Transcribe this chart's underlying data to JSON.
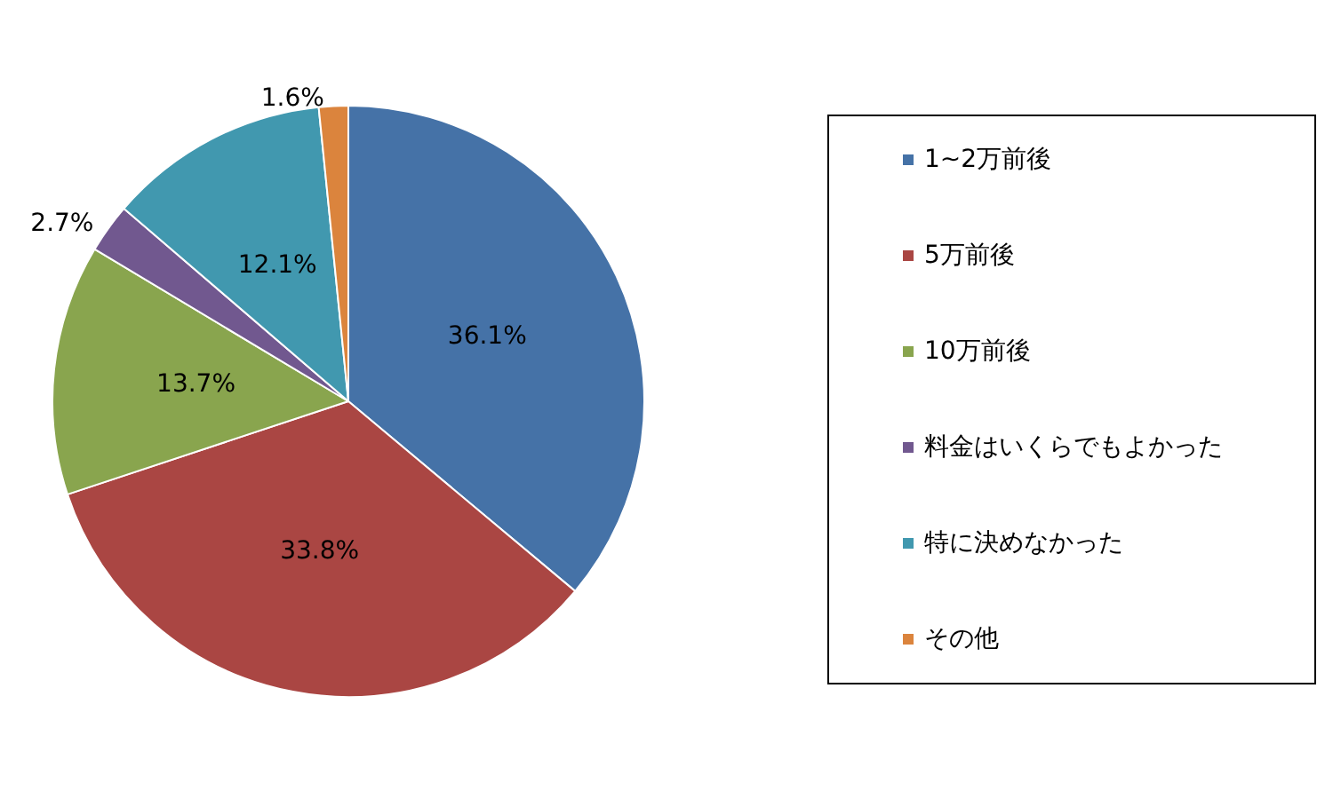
{
  "chart_data": {
    "type": "pie",
    "categories": [
      "1~2万前後",
      "5万前後",
      "10万前後",
      "料金はいくらでもよかった",
      "特に決めなかった",
      "その他"
    ],
    "values": [
      36.1,
      33.8,
      13.7,
      2.7,
      12.1,
      1.6
    ],
    "colors": [
      "#4572a7",
      "#aa4643",
      "#89a54e",
      "#71588f",
      "#4198af",
      "#db843d"
    ],
    "value_labels": [
      "36.1%",
      "33.8%",
      "13.7%",
      "2.7%",
      "12.1%",
      "1.6%"
    ],
    "legend": "right"
  }
}
